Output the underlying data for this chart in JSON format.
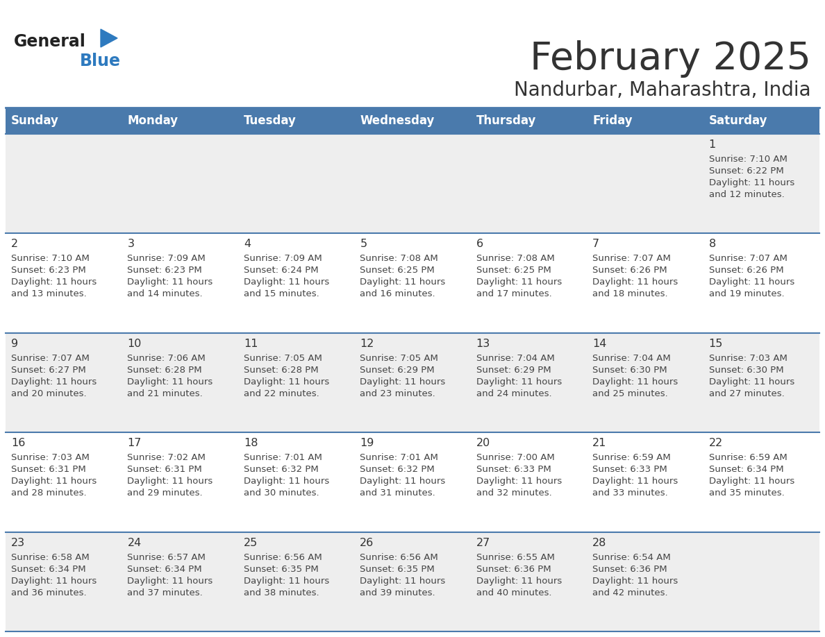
{
  "title": "February 2025",
  "subtitle": "Nandurbar, Maharashtra, India",
  "header_bg": "#4a7aac",
  "header_text": "#ffffff",
  "weekdays": [
    "Sunday",
    "Monday",
    "Tuesday",
    "Wednesday",
    "Thursday",
    "Friday",
    "Saturday"
  ],
  "row_bg_odd": "#eeeeee",
  "row_bg_even": "#ffffff",
  "cell_border": "#4a7aac",
  "day_text_color": "#333333",
  "info_text_color": "#444444",
  "days": [
    {
      "day": 1,
      "col": 6,
      "row": 0,
      "sunrise": "7:10 AM",
      "sunset": "6:22 PM",
      "daylight_hours": 11,
      "daylight_minutes": 12
    },
    {
      "day": 2,
      "col": 0,
      "row": 1,
      "sunrise": "7:10 AM",
      "sunset": "6:23 PM",
      "daylight_hours": 11,
      "daylight_minutes": 13
    },
    {
      "day": 3,
      "col": 1,
      "row": 1,
      "sunrise": "7:09 AM",
      "sunset": "6:23 PM",
      "daylight_hours": 11,
      "daylight_minutes": 14
    },
    {
      "day": 4,
      "col": 2,
      "row": 1,
      "sunrise": "7:09 AM",
      "sunset": "6:24 PM",
      "daylight_hours": 11,
      "daylight_minutes": 15
    },
    {
      "day": 5,
      "col": 3,
      "row": 1,
      "sunrise": "7:08 AM",
      "sunset": "6:25 PM",
      "daylight_hours": 11,
      "daylight_minutes": 16
    },
    {
      "day": 6,
      "col": 4,
      "row": 1,
      "sunrise": "7:08 AM",
      "sunset": "6:25 PM",
      "daylight_hours": 11,
      "daylight_minutes": 17
    },
    {
      "day": 7,
      "col": 5,
      "row": 1,
      "sunrise": "7:07 AM",
      "sunset": "6:26 PM",
      "daylight_hours": 11,
      "daylight_minutes": 18
    },
    {
      "day": 8,
      "col": 6,
      "row": 1,
      "sunrise": "7:07 AM",
      "sunset": "6:26 PM",
      "daylight_hours": 11,
      "daylight_minutes": 19
    },
    {
      "day": 9,
      "col": 0,
      "row": 2,
      "sunrise": "7:07 AM",
      "sunset": "6:27 PM",
      "daylight_hours": 11,
      "daylight_minutes": 20
    },
    {
      "day": 10,
      "col": 1,
      "row": 2,
      "sunrise": "7:06 AM",
      "sunset": "6:28 PM",
      "daylight_hours": 11,
      "daylight_minutes": 21
    },
    {
      "day": 11,
      "col": 2,
      "row": 2,
      "sunrise": "7:05 AM",
      "sunset": "6:28 PM",
      "daylight_hours": 11,
      "daylight_minutes": 22
    },
    {
      "day": 12,
      "col": 3,
      "row": 2,
      "sunrise": "7:05 AM",
      "sunset": "6:29 PM",
      "daylight_hours": 11,
      "daylight_minutes": 23
    },
    {
      "day": 13,
      "col": 4,
      "row": 2,
      "sunrise": "7:04 AM",
      "sunset": "6:29 PM",
      "daylight_hours": 11,
      "daylight_minutes": 24
    },
    {
      "day": 14,
      "col": 5,
      "row": 2,
      "sunrise": "7:04 AM",
      "sunset": "6:30 PM",
      "daylight_hours": 11,
      "daylight_minutes": 25
    },
    {
      "day": 15,
      "col": 6,
      "row": 2,
      "sunrise": "7:03 AM",
      "sunset": "6:30 PM",
      "daylight_hours": 11,
      "daylight_minutes": 27
    },
    {
      "day": 16,
      "col": 0,
      "row": 3,
      "sunrise": "7:03 AM",
      "sunset": "6:31 PM",
      "daylight_hours": 11,
      "daylight_minutes": 28
    },
    {
      "day": 17,
      "col": 1,
      "row": 3,
      "sunrise": "7:02 AM",
      "sunset": "6:31 PM",
      "daylight_hours": 11,
      "daylight_minutes": 29
    },
    {
      "day": 18,
      "col": 2,
      "row": 3,
      "sunrise": "7:01 AM",
      "sunset": "6:32 PM",
      "daylight_hours": 11,
      "daylight_minutes": 30
    },
    {
      "day": 19,
      "col": 3,
      "row": 3,
      "sunrise": "7:01 AM",
      "sunset": "6:32 PM",
      "daylight_hours": 11,
      "daylight_minutes": 31
    },
    {
      "day": 20,
      "col": 4,
      "row": 3,
      "sunrise": "7:00 AM",
      "sunset": "6:33 PM",
      "daylight_hours": 11,
      "daylight_minutes": 32
    },
    {
      "day": 21,
      "col": 5,
      "row": 3,
      "sunrise": "6:59 AM",
      "sunset": "6:33 PM",
      "daylight_hours": 11,
      "daylight_minutes": 33
    },
    {
      "day": 22,
      "col": 6,
      "row": 3,
      "sunrise": "6:59 AM",
      "sunset": "6:34 PM",
      "daylight_hours": 11,
      "daylight_minutes": 35
    },
    {
      "day": 23,
      "col": 0,
      "row": 4,
      "sunrise": "6:58 AM",
      "sunset": "6:34 PM",
      "daylight_hours": 11,
      "daylight_minutes": 36
    },
    {
      "day": 24,
      "col": 1,
      "row": 4,
      "sunrise": "6:57 AM",
      "sunset": "6:34 PM",
      "daylight_hours": 11,
      "daylight_minutes": 37
    },
    {
      "day": 25,
      "col": 2,
      "row": 4,
      "sunrise": "6:56 AM",
      "sunset": "6:35 PM",
      "daylight_hours": 11,
      "daylight_minutes": 38
    },
    {
      "day": 26,
      "col": 3,
      "row": 4,
      "sunrise": "6:56 AM",
      "sunset": "6:35 PM",
      "daylight_hours": 11,
      "daylight_minutes": 39
    },
    {
      "day": 27,
      "col": 4,
      "row": 4,
      "sunrise": "6:55 AM",
      "sunset": "6:36 PM",
      "daylight_hours": 11,
      "daylight_minutes": 40
    },
    {
      "day": 28,
      "col": 5,
      "row": 4,
      "sunrise": "6:54 AM",
      "sunset": "6:36 PM",
      "daylight_hours": 11,
      "daylight_minutes": 42
    }
  ],
  "logo_general_color": "#222222",
  "logo_blue_color": "#2e7abf",
  "logo_triangle_color": "#2e7abf"
}
